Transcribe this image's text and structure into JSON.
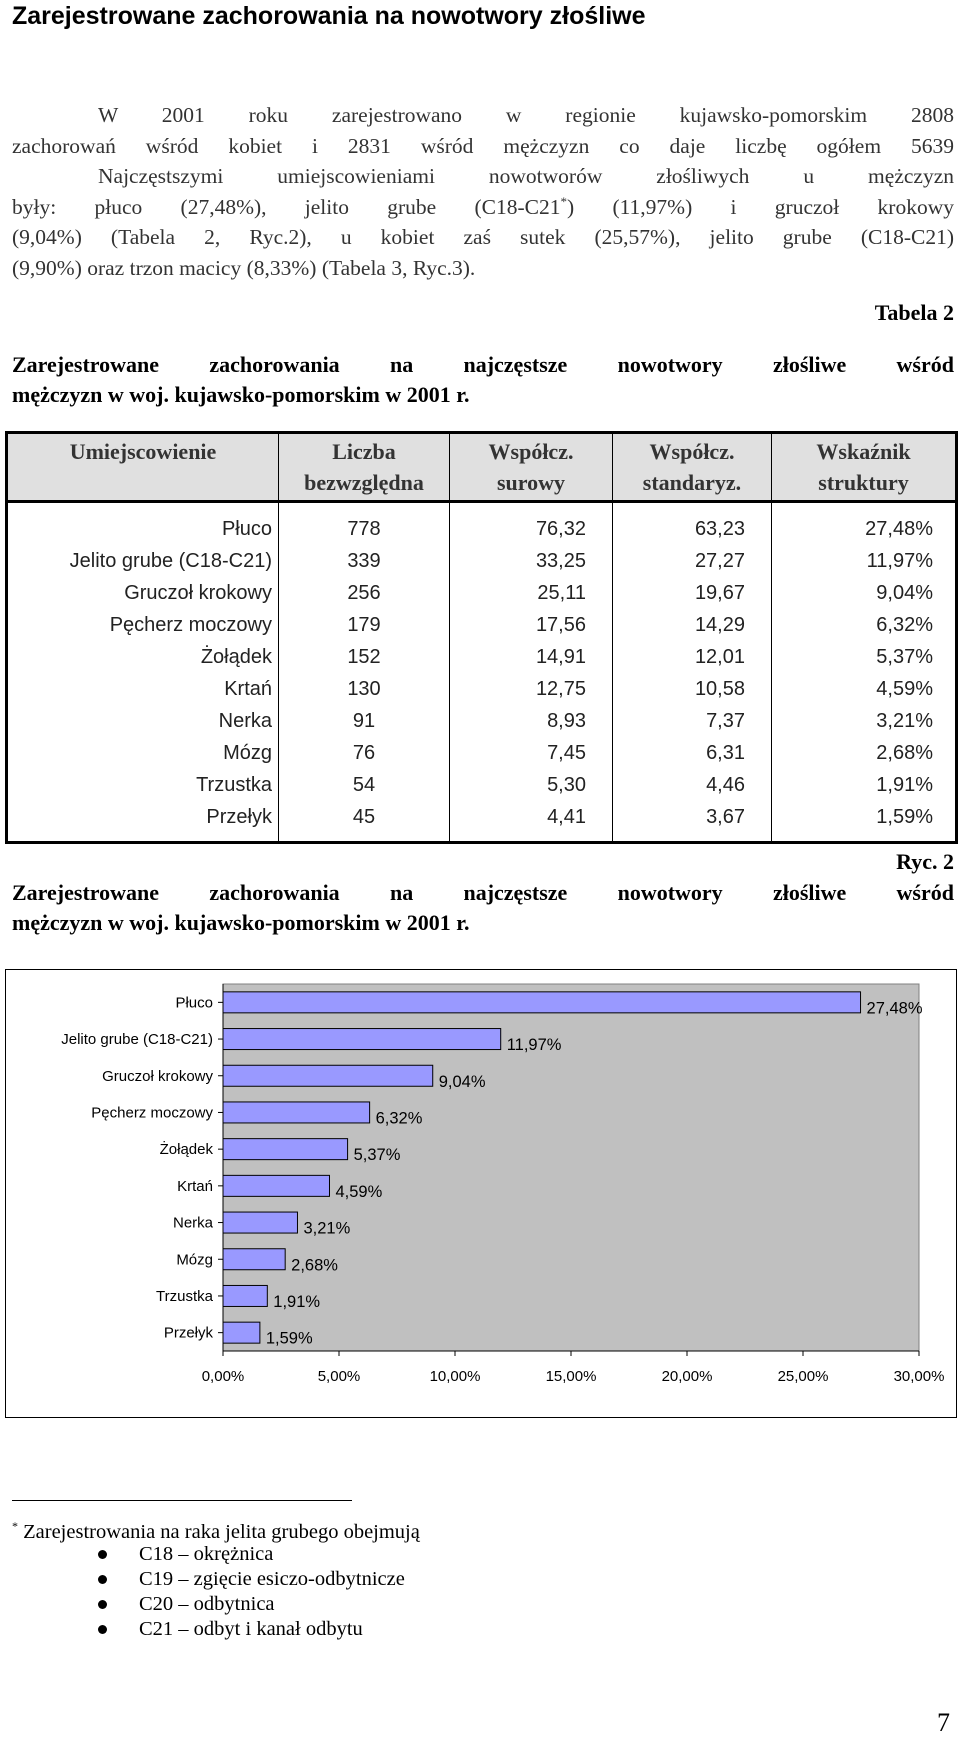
{
  "heading": "Zarejestrowane zachorowania na nowotwory złośliwe",
  "paragraph_lines": [
    "W 2001 roku zarejestrowano w regionie kujawsko-pomorskim 2808",
    "zachorowań wśród kobiet i 2831 wśród mężczyzn co daje liczbę ogółem 5639",
    "Najczęstszymi umiejscowieniami nowotworów złośliwych u mężczyzn",
    "były: płuco (27,48%), jelito grube (C18-C21",
    "*",
    ") (11,97%) i gruczoł krokowy",
    "(9,04%) (Tabela 2, Ryc.2), u kobiet zaś sutek (25,57%), jelito grube (C18-C21)",
    "(9,90%) oraz trzon macicy (8,33%) (Tabela 3, Ryc.3)."
  ],
  "table_label": "Tabela 2",
  "table_caption": [
    "Zarejestrowane zachorowania na najczęstsze nowotwory złośliwe wśród",
    "mężczyzn w woj. kujawsko-pomorskim w 2001 r."
  ],
  "table": {
    "headers": [
      [
        "Umiejscowienie",
        ""
      ],
      [
        "Liczba",
        "bezwzględna"
      ],
      [
        "Współcz.",
        "surowy"
      ],
      [
        "Współcz.",
        "standaryz."
      ],
      [
        "Wskaźnik",
        "struktury"
      ]
    ],
    "rows": [
      [
        "Płuco",
        "778",
        "76,32",
        "63,23",
        "27,48%"
      ],
      [
        "Jelito grube (C18-C21)",
        "339",
        "33,25",
        "27,27",
        "11,97%"
      ],
      [
        "Gruczoł krokowy",
        "256",
        "25,11",
        "19,67",
        "9,04%"
      ],
      [
        "Pęcherz moczowy",
        "179",
        "17,56",
        "14,29",
        "6,32%"
      ],
      [
        "Żołądek",
        "152",
        "14,91",
        "12,01",
        "5,37%"
      ],
      [
        "Krtań",
        "130",
        "12,75",
        "10,58",
        "4,59%"
      ],
      [
        "Nerka",
        "91",
        "8,93",
        "7,37",
        "3,21%"
      ],
      [
        "Mózg",
        "76",
        "7,45",
        "6,31",
        "2,68%"
      ],
      [
        "Trzustka",
        "54",
        "5,30",
        "4,46",
        "1,91%"
      ],
      [
        "Przełyk",
        "45",
        "4,41",
        "3,67",
        "1,59%"
      ]
    ]
  },
  "chart_label": "Ryc. 2",
  "chart_caption": [
    "Zarejestrowane zachorowania na najczęstsze nowotwory złośliwe wśród",
    "mężczyzn w woj. kujawsko-pomorskim w 2001 r."
  ],
  "chart_data": {
    "type": "bar",
    "orientation": "horizontal",
    "categories": [
      "Płuco",
      "Jelito grube (C18-C21)",
      "Gruczoł krokowy",
      "Pęcherz moczowy",
      "Żołądek",
      "Krtań",
      "Nerka",
      "Mózg",
      "Trzustka",
      "Przełyk"
    ],
    "values": [
      27.48,
      11.97,
      9.04,
      6.32,
      5.37,
      4.59,
      3.21,
      2.68,
      1.91,
      1.59
    ],
    "data_labels": [
      "27,48%",
      "11,97%",
      "9,04%",
      "6,32%",
      "5,37%",
      "4,59%",
      "3,21%",
      "2,68%",
      "1,91%",
      "1,59%"
    ],
    "xlim": [
      0,
      30
    ],
    "x_ticks": [
      "0,00%",
      "5,00%",
      "10,00%",
      "15,00%",
      "20,00%",
      "25,00%",
      "30,00%"
    ],
    "bar_color": "#9999ff",
    "plot_background": "#c0c0c0",
    "grid": false,
    "legend": "none"
  },
  "footnote": {
    "marker": "*",
    "text": "Zarejestrowania na raka jelita grubego obejmują",
    "items": [
      "C18 – okrężnica",
      "C19 – zgięcie esiczo-odbytnicze",
      "C20 – odbytnica",
      "C21 – odbyt i kanał odbytu"
    ]
  },
  "page_number": "7"
}
